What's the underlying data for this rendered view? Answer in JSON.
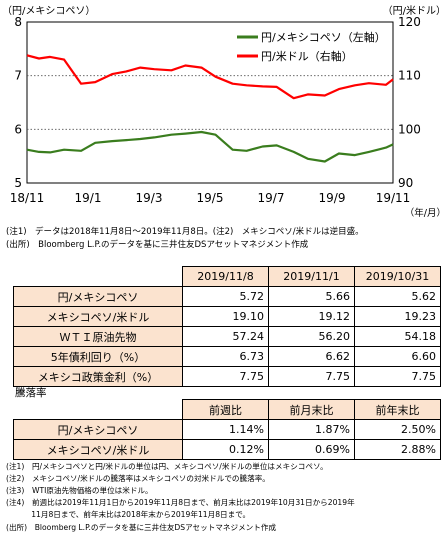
{
  "chart_data": {
    "type": "line",
    "left_axis_label": "（円/メキシコペソ）",
    "right_axis_label": "（円/米ドル）",
    "x_unit_label": "（年/月）",
    "x_ticks": [
      "18/11",
      "19/1",
      "19/3",
      "19/5",
      "19/7",
      "19/9",
      "19/11"
    ],
    "left_ticks": [
      "8",
      "7",
      "6",
      "5"
    ],
    "right_ticks": [
      "120",
      "110",
      "100",
      "90"
    ],
    "left_ylim": [
      5,
      8
    ],
    "right_ylim": [
      90,
      120
    ],
    "x_domain": [
      "2018-11-08",
      "2019-11-08"
    ],
    "grid": "dotted horizontal",
    "legend_position": "top-right",
    "series": [
      {
        "name": "円/メキシコペソ（左軸）",
        "axis": "left",
        "color": "#3a7d1e",
        "dates": [
          "2018-11-08",
          "2018-11-20",
          "2018-12-01",
          "2018-12-15",
          "2019-01-01",
          "2019-01-15",
          "2019-02-01",
          "2019-02-15",
          "2019-03-01",
          "2019-03-15",
          "2019-04-01",
          "2019-04-15",
          "2019-05-01",
          "2019-05-15",
          "2019-06-01",
          "2019-06-15",
          "2019-07-01",
          "2019-07-15",
          "2019-08-01",
          "2019-08-15",
          "2019-09-01",
          "2019-09-15",
          "2019-10-01",
          "2019-10-15",
          "2019-11-01",
          "2019-11-08"
        ],
        "values": [
          5.62,
          5.58,
          5.57,
          5.62,
          5.6,
          5.75,
          5.78,
          5.8,
          5.82,
          5.85,
          5.9,
          5.92,
          5.95,
          5.9,
          5.62,
          5.6,
          5.68,
          5.7,
          5.58,
          5.45,
          5.4,
          5.55,
          5.52,
          5.58,
          5.66,
          5.72
        ]
      },
      {
        "name": "円/米ドル（右軸）",
        "axis": "right",
        "color": "#ff0000",
        "dates": [
          "2018-11-08",
          "2018-11-20",
          "2018-12-01",
          "2018-12-15",
          "2019-01-01",
          "2019-01-15",
          "2019-02-01",
          "2019-02-15",
          "2019-03-01",
          "2019-03-15",
          "2019-04-01",
          "2019-04-15",
          "2019-05-01",
          "2019-05-15",
          "2019-06-01",
          "2019-06-15",
          "2019-07-01",
          "2019-07-15",
          "2019-08-01",
          "2019-08-15",
          "2019-09-01",
          "2019-09-15",
          "2019-10-01",
          "2019-10-15",
          "2019-11-01",
          "2019-11-08"
        ],
        "values": [
          113.8,
          113.2,
          113.5,
          113.0,
          108.5,
          108.8,
          110.3,
          110.8,
          111.5,
          111.2,
          111.0,
          111.9,
          111.5,
          109.8,
          108.5,
          108.2,
          108.0,
          107.9,
          105.8,
          106.5,
          106.3,
          107.5,
          108.2,
          108.6,
          108.3,
          109.3
        ]
      }
    ]
  },
  "chart_notes": {
    "note1": "(注1)　データは2018年11月8日～2019年11月8日。(注2)　メキシコペソ/米ドルは逆目盛。",
    "source": "(出所)　Bloomberg L.P.のデータを基に三井住友DSアセットマネジメント作成"
  },
  "table1": {
    "headers": [
      "2019/11/8",
      "2019/11/1",
      "2019/10/31"
    ],
    "rows": [
      {
        "label": "円/メキシコペソ",
        "values": [
          "5.72",
          "5.66",
          "5.62"
        ]
      },
      {
        "label": "メキシコペソ/米ドル",
        "values": [
          "19.10",
          "19.12",
          "19.23"
        ]
      },
      {
        "label": "ＷＴＩ原油先物",
        "values": [
          "57.24",
          "56.20",
          "54.18"
        ]
      },
      {
        "label": "5年債利回り（%）",
        "values": [
          "6.73",
          "6.62",
          "6.60"
        ]
      },
      {
        "label": "メキシコ政策金利（%）",
        "values": [
          "7.75",
          "7.75",
          "7.75"
        ]
      }
    ]
  },
  "table2": {
    "title": "騰落率",
    "headers": [
      "前週比",
      "前月末比",
      "前年末比"
    ],
    "rows": [
      {
        "label": "円/メキシコペソ",
        "values": [
          "1.14%",
          "1.87%",
          "2.50%"
        ]
      },
      {
        "label": "メキシコペソ/米ドル",
        "values": [
          "0.12%",
          "0.69%",
          "2.88%"
        ]
      }
    ]
  },
  "footnotes": [
    "(注1)　円/メキシコペソと円/米ドルの単位は円、メキシコペソ/米ドルの単位はメキシコペソ。",
    "(注2)　メキシコペソ/米ドルの騰落率はメキシコペソの対米ドルでの騰落率。",
    "(注3)　WTI原油先物価格の単位は米ドル。",
    "(注4)　前週比は2019年11月1日から2019年11月8日まで、前月末比は2019年10月31日から2019年",
    "　　　 11月8日まで、前年末比は2018年末から2019年11月8日まで。",
    "(出所)　Bloomberg L.P.のデータを基に三井住友DSアセットマネジメント作成"
  ]
}
